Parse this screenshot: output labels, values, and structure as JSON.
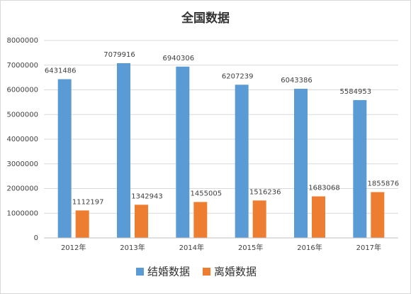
{
  "chart_data": {
    "type": "bar",
    "title": "全国数据",
    "categories": [
      "2012年",
      "2013年",
      "2014年",
      "2015年",
      "2016年",
      "2017年"
    ],
    "series": [
      {
        "name": "结婚数据",
        "color": "#5b9bd5",
        "values": [
          6431486,
          7079916,
          6940306,
          6207239,
          6043386,
          5584953
        ]
      },
      {
        "name": "离婚数据",
        "color": "#ed7d31",
        "values": [
          1112197,
          1342943,
          1455005,
          1516236,
          1683068,
          1855876
        ]
      }
    ],
    "ylim": [
      0,
      8000000
    ],
    "yticks": [
      0,
      1000000,
      2000000,
      3000000,
      4000000,
      5000000,
      6000000,
      7000000,
      8000000
    ],
    "grid": true,
    "legend": "bottom"
  }
}
